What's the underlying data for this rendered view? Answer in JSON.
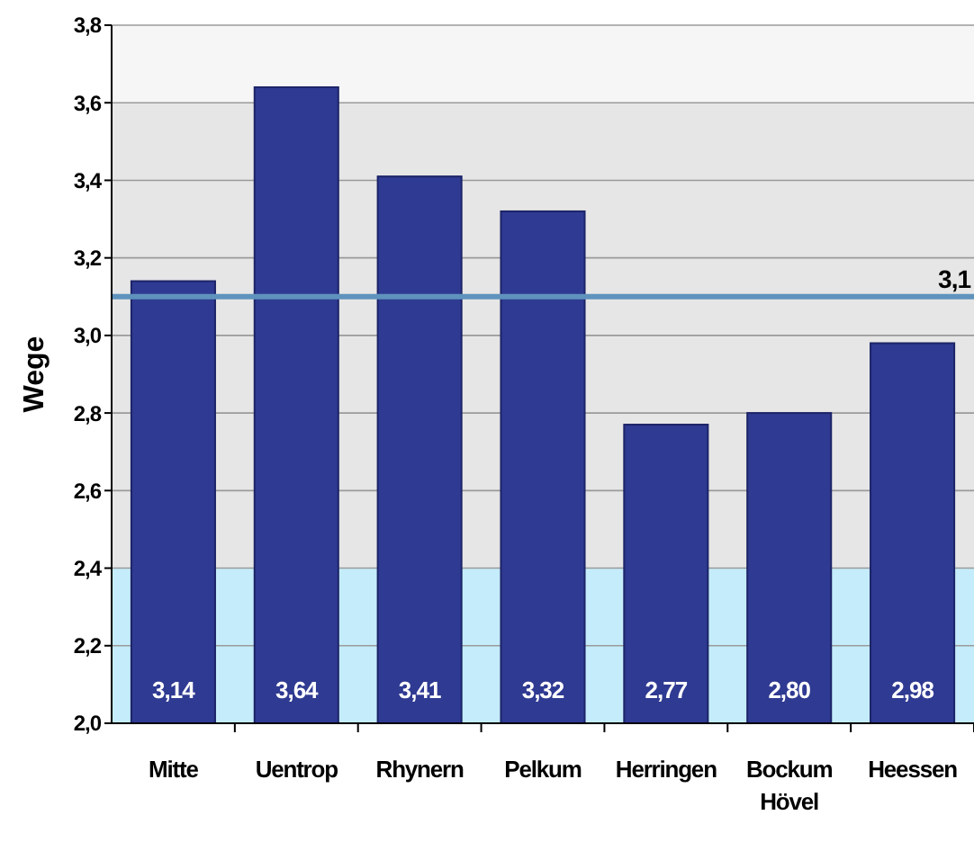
{
  "chart_data": {
    "type": "bar",
    "ylabel": "Wege",
    "categories": [
      "Mitte",
      "Uentrop",
      "Rhynern",
      "Pelkum",
      "Herringen",
      "Bockum Hövel",
      "Heessen"
    ],
    "values": [
      3.14,
      3.64,
      3.41,
      3.32,
      2.77,
      2.8,
      2.98
    ],
    "value_labels": [
      "3,14",
      "3,64",
      "3,41",
      "3,32",
      "2,77",
      "2,80",
      "2,98"
    ],
    "color": "#2f3a92",
    "ylim": [
      2.0,
      3.8
    ],
    "yticks": [
      {
        "value": 2.0,
        "label": "2,0"
      },
      {
        "value": 2.2,
        "label": "2,2"
      },
      {
        "value": 2.4,
        "label": "2,4"
      },
      {
        "value": 2.6,
        "label": "2,6"
      },
      {
        "value": 2.8,
        "label": "2,8"
      },
      {
        "value": 3.0,
        "label": "3,0"
      },
      {
        "value": 3.2,
        "label": "3,2"
      },
      {
        "value": 3.4,
        "label": "3,4"
      },
      {
        "value": 3.6,
        "label": "3,6"
      },
      {
        "value": 3.8,
        "label": "3,8"
      }
    ],
    "grid": "y",
    "bands": [
      {
        "axis": "y",
        "from": 2.0,
        "to": 2.4,
        "color": "#c4ecfa"
      },
      {
        "axis": "y",
        "from": 2.4,
        "to": 3.6,
        "color": "#e6e6e6"
      },
      {
        "axis": "y",
        "from": 3.6,
        "to": 3.8,
        "color": "#f6f6f6"
      }
    ],
    "ref_lines": [
      {
        "axis": "y",
        "value": 3.1,
        "label": "3,1",
        "color": "#5f93bd"
      }
    ]
  }
}
